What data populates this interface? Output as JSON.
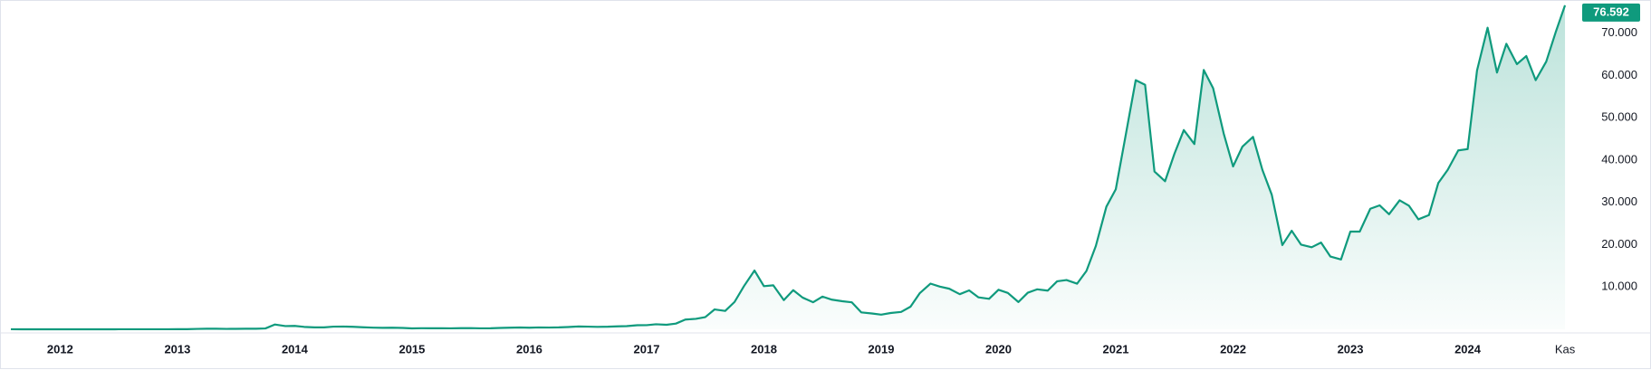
{
  "chart_data": {
    "type": "area-line",
    "color": "#0f9a7d",
    "x": [
      2011.58,
      2011.67,
      2011.75,
      2011.83,
      2011.92,
      2012,
      2012.08,
      2012.17,
      2012.25,
      2012.33,
      2012.42,
      2012.5,
      2012.58,
      2012.67,
      2012.75,
      2012.83,
      2012.92,
      2013,
      2013.08,
      2013.17,
      2013.25,
      2013.33,
      2013.42,
      2013.5,
      2013.58,
      2013.67,
      2013.75,
      2013.83,
      2013.92,
      2014,
      2014.08,
      2014.17,
      2014.25,
      2014.33,
      2014.42,
      2014.5,
      2014.58,
      2014.67,
      2014.75,
      2014.83,
      2014.92,
      2015,
      2015.08,
      2015.17,
      2015.25,
      2015.33,
      2015.42,
      2015.5,
      2015.58,
      2015.67,
      2015.75,
      2015.83,
      2015.92,
      2016,
      2016.08,
      2016.17,
      2016.25,
      2016.33,
      2016.42,
      2016.5,
      2016.58,
      2016.67,
      2016.75,
      2016.83,
      2016.92,
      2017,
      2017.08,
      2017.17,
      2017.25,
      2017.33,
      2017.42,
      2017.5,
      2017.58,
      2017.67,
      2017.75,
      2017.83,
      2017.92,
      2018,
      2018.08,
      2018.17,
      2018.25,
      2018.33,
      2018.42,
      2018.5,
      2018.58,
      2018.67,
      2018.75,
      2018.83,
      2018.92,
      2019,
      2019.08,
      2019.17,
      2019.25,
      2019.33,
      2019.42,
      2019.5,
      2019.58,
      2019.67,
      2019.75,
      2019.83,
      2019.92,
      2020,
      2020.08,
      2020.17,
      2020.25,
      2020.33,
      2020.42,
      2020.5,
      2020.58,
      2020.67,
      2020.75,
      2020.83,
      2020.92,
      2021,
      2021.08,
      2021.17,
      2021.25,
      2021.33,
      2021.42,
      2021.5,
      2021.58,
      2021.67,
      2021.75,
      2021.83,
      2021.92,
      2022,
      2022.08,
      2022.17,
      2022.25,
      2022.33,
      2022.42,
      2022.5,
      2022.58,
      2022.67,
      2022.75,
      2022.83,
      2022.92,
      2023,
      2023.08,
      2023.17,
      2023.25,
      2023.33,
      2023.42,
      2023.5,
      2023.58,
      2023.67,
      2023.75,
      2023.83,
      2023.92,
      2024,
      2024.08,
      2024.17,
      2024.25,
      2024.33,
      2024.42,
      2024.5,
      2024.58,
      2024.67,
      2024.75,
      2024.83
    ],
    "values": [
      8,
      5,
      3,
      3,
      4,
      5,
      5,
      5,
      5,
      5,
      7,
      9,
      10,
      12,
      11,
      12,
      13,
      20,
      33,
      93,
      139,
      129,
      97,
      106,
      135,
      133,
      198,
      1130,
      757,
      800,
      570,
      460,
      450,
      630,
      640,
      590,
      480,
      390,
      340,
      380,
      320,
      220,
      250,
      245,
      235,
      230,
      265,
      285,
      230,
      235,
      315,
      380,
      430,
      370,
      437,
      416,
      448,
      530,
      675,
      625,
      575,
      610,
      700,
      745,
      960,
      970,
      1190,
      1070,
      1350,
      2300,
      2480,
      2880,
      4700,
      4340,
      6470,
      10200,
      13900,
      10200,
      10400,
      6900,
      9250,
      7500,
      6400,
      7730,
      7000,
      6630,
      6370,
      4000,
      3740,
      3460,
      3850,
      4100,
      5350,
      8570,
      10800,
      10100,
      9600,
      8300,
      9200,
      7550,
      7200,
      9350,
      8600,
      6440,
      8650,
      9450,
      9140,
      11350,
      11650,
      10780,
      13800,
      19700,
      29000,
      33100,
      45200,
      58900,
      57800,
      37300,
      35000,
      41500,
      47100,
      43800,
      61300,
      57000,
      46300,
      38500,
      43200,
      45500,
      37700,
      31800,
      19900,
      23300,
      20000,
      19400,
      20500,
      17200,
      16500,
      23100,
      23100,
      28500,
      29300,
      27200,
      30500,
      29200,
      26000,
      27000,
      34600,
      37700,
      42300,
      42600,
      61200,
      71300,
      60700,
      67500,
      62700,
      64600,
      58900,
      63300,
      70200,
      76592
    ],
    "last_price_label": "76.592",
    "xlim": [
      2011.58,
      2024.93
    ],
    "xticks": [
      2012,
      2013,
      2014,
      2015,
      2016,
      2017,
      2018,
      2019,
      2020,
      2021,
      2022,
      2023,
      2024,
      {
        "value": 2024.83,
        "label": "Kas"
      }
    ],
    "ylim": [
      0,
      77000
    ],
    "yticks": [
      {
        "value": 10000,
        "label": "10.000"
      },
      {
        "value": 20000,
        "label": "20.000"
      },
      {
        "value": 30000,
        "label": "30.000"
      },
      {
        "value": 40000,
        "label": "40.000"
      },
      {
        "value": 50000,
        "label": "50.000"
      },
      {
        "value": 60000,
        "label": "60.000"
      },
      {
        "value": 70000,
        "label": "70.000"
      }
    ],
    "grid": false
  }
}
